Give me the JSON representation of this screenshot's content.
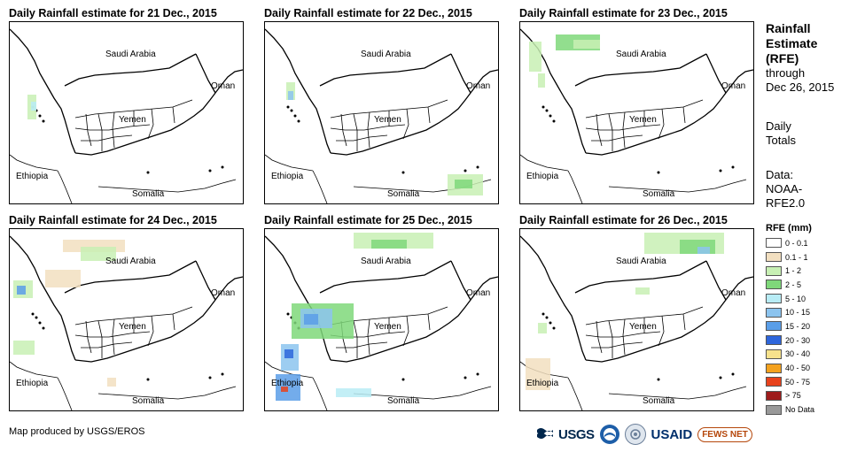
{
  "panels": [
    {
      "title": "Daily Rainfall estimate for 21 Dec., 2015"
    },
    {
      "title": "Daily Rainfall estimate for 22 Dec., 2015"
    },
    {
      "title": "Daily Rainfall estimate for 23 Dec., 2015"
    },
    {
      "title": "Daily Rainfall estimate for 24 Dec., 2015"
    },
    {
      "title": "Daily Rainfall estimate for 25 Dec., 2015"
    },
    {
      "title": "Daily Rainfall estimate for 26 Dec., 2015"
    }
  ],
  "places": {
    "saudi": "Saudi Arabia",
    "oman": "Oman",
    "yemen": "Yemen",
    "ethiopia": "Ethiopia",
    "somalia": "Somalia"
  },
  "side": {
    "title_line1": "Rainfall",
    "title_line2": "Estimate",
    "title_line3": "(RFE)",
    "through": "through",
    "date": "Dec 26, 2015",
    "daily1": "Daily",
    "daily2": "Totals",
    "data1": "Data:",
    "data2": "NOAA-",
    "data3": "RFE2.0"
  },
  "legend": {
    "title": "RFE (mm)",
    "items": [
      {
        "label": "0 - 0.1",
        "color": "#ffffff"
      },
      {
        "label": "0.1 - 1",
        "color": "#f2dfc0"
      },
      {
        "label": "1 - 2",
        "color": "#c8f0b4"
      },
      {
        "label": "2 - 5",
        "color": "#7fd87a"
      },
      {
        "label": "5 - 10",
        "color": "#b8ecf5"
      },
      {
        "label": "10 - 15",
        "color": "#8cc4ef"
      },
      {
        "label": "15 - 20",
        "color": "#5a9ee8"
      },
      {
        "label": "20 - 30",
        "color": "#2e66dc"
      },
      {
        "label": "30 - 40",
        "color": "#f7e28c"
      },
      {
        "label": "40 - 50",
        "color": "#f4a21f"
      },
      {
        "label": "50 - 75",
        "color": "#e8421c"
      },
      {
        "label": "> 75",
        "color": "#9e1c1c"
      },
      {
        "label": "No Data",
        "color": "#999999"
      }
    ]
  },
  "credit": "Map produced by USGS/EROS",
  "logos": {
    "usgs": "USGS",
    "usaid": "USAID",
    "fews": "FEWS NET",
    "usgs_icon": "usgs-wave-icon",
    "noaa_icon": "noaa-icon",
    "doi_icon": "doi-seal-icon"
  }
}
